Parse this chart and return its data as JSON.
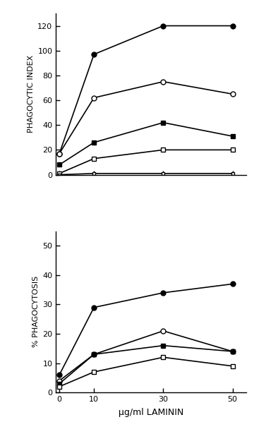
{
  "x": [
    0,
    10,
    30,
    50
  ],
  "top_panel": {
    "ylabel": "PHAGOCYTIC INDEX",
    "ylim": [
      0,
      130
    ],
    "yticks": [
      0,
      20,
      40,
      60,
      80,
      100,
      120
    ],
    "series": [
      {
        "marker": "o",
        "filled": true,
        "values": [
          17,
          97,
          120,
          120
        ]
      },
      {
        "marker": "o",
        "filled": false,
        "values": [
          17,
          62,
          75,
          65
        ]
      },
      {
        "marker": "s",
        "filled": true,
        "values": [
          8,
          26,
          42,
          31
        ]
      },
      {
        "marker": "s",
        "filled": false,
        "values": [
          1,
          13,
          20,
          20
        ]
      },
      {
        "marker": "s",
        "filled": false,
        "values": [
          0,
          1,
          1,
          1
        ],
        "tiny": true
      }
    ]
  },
  "bottom_panel": {
    "ylabel": "% PHAGOCYTOSIS",
    "xlabel": "μg/ml LAMININ",
    "ylim": [
      0,
      55
    ],
    "yticks": [
      0,
      10,
      20,
      30,
      40,
      50
    ],
    "series": [
      {
        "marker": "o",
        "filled": true,
        "values": [
          6,
          29,
          34,
          37
        ]
      },
      {
        "marker": "o",
        "filled": false,
        "values": [
          4,
          13,
          21,
          14
        ]
      },
      {
        "marker": "s",
        "filled": true,
        "values": [
          3,
          13,
          16,
          14
        ]
      },
      {
        "marker": "s",
        "filled": false,
        "values": [
          2,
          7,
          12,
          9
        ]
      }
    ]
  },
  "line_color": "#000000",
  "markersize": 5,
  "linewidth": 1.2,
  "xticks": [
    0,
    10,
    30,
    50
  ],
  "background_color": "#ffffff"
}
